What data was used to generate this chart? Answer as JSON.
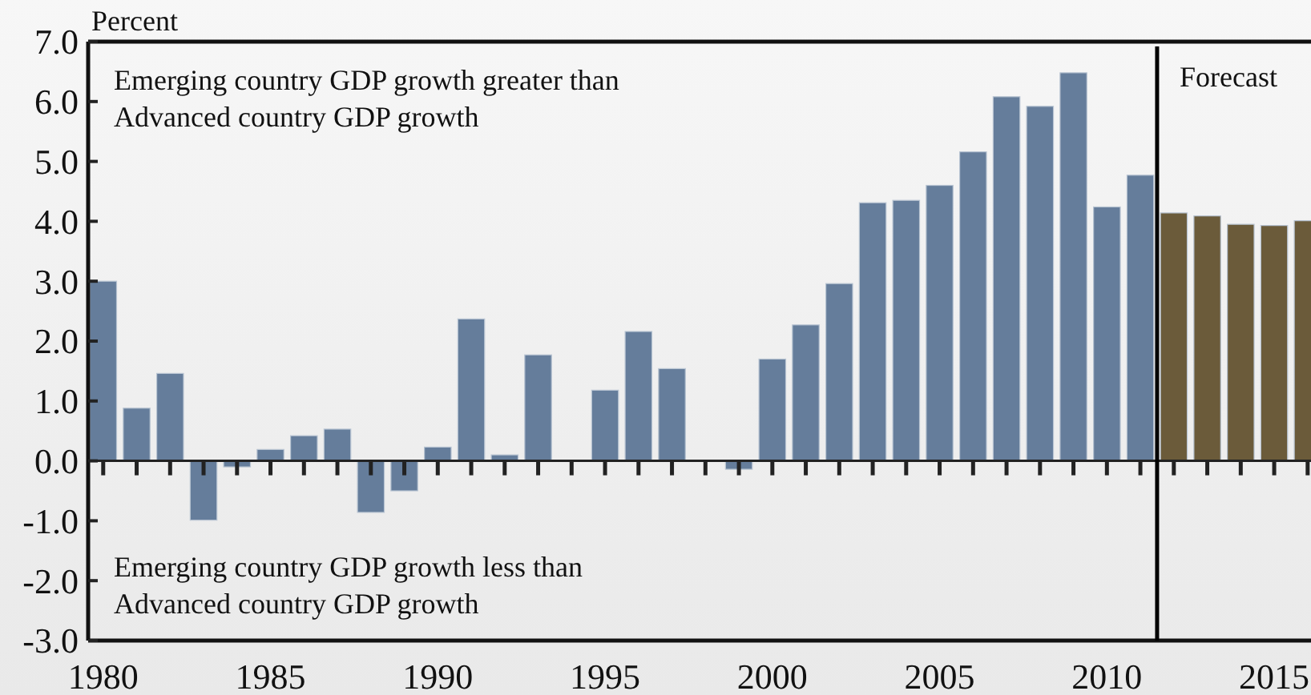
{
  "chart_data": {
    "type": "bar",
    "ylabel": "Percent",
    "x": [
      1980,
      1981,
      1982,
      1983,
      1984,
      1985,
      1986,
      1987,
      1988,
      1989,
      1990,
      1991,
      1992,
      1993,
      1994,
      1995,
      1996,
      1997,
      1998,
      1999,
      2000,
      2001,
      2002,
      2003,
      2004,
      2005,
      2006,
      2007,
      2008,
      2009,
      2010,
      2011,
      2012,
      2013,
      2014,
      2015,
      2016
    ],
    "series": [
      {
        "color": "#657d9b",
        "values": [
          3.0,
          0.88,
          1.46,
          -0.99,
          -0.1,
          0.19,
          0.42,
          0.53,
          -0.86,
          -0.5,
          0.23,
          2.37,
          0.1,
          1.77,
          0,
          1.18,
          2.16,
          1.54,
          0,
          -0.14,
          1.7,
          2.27,
          2.96,
          4.31,
          4.35,
          4.6,
          5.16,
          6.08,
          5.92,
          6.48,
          4.24,
          4.77,
          null,
          null,
          null,
          null,
          null
        ]
      },
      {
        "color": "#6b5b3a",
        "values": [
          null,
          null,
          null,
          null,
          null,
          null,
          null,
          null,
          null,
          null,
          null,
          null,
          null,
          null,
          null,
          null,
          null,
          null,
          null,
          null,
          null,
          null,
          null,
          null,
          null,
          null,
          null,
          null,
          null,
          null,
          null,
          null,
          4.14,
          4.09,
          3.95,
          3.93,
          4.01
        ]
      }
    ],
    "xlim": [
      1979.55,
      2016.1
    ],
    "xticks": [
      1980,
      {
        "value": 1981,
        "label": null
      },
      {
        "value": 1982,
        "label": null
      },
      {
        "value": 1983,
        "label": null
      },
      {
        "value": 1984,
        "label": null
      },
      1985,
      {
        "value": 1986,
        "label": null
      },
      {
        "value": 1987,
        "label": null
      },
      {
        "value": 1988,
        "label": null
      },
      {
        "value": 1989,
        "label": null
      },
      1990,
      {
        "value": 1991,
        "label": null
      },
      {
        "value": 1992,
        "label": null
      },
      {
        "value": 1993,
        "label": null
      },
      {
        "value": 1994,
        "label": null
      },
      1995,
      {
        "value": 1996,
        "label": null
      },
      {
        "value": 1997,
        "label": null
      },
      {
        "value": 1998,
        "label": null
      },
      {
        "value": 1999,
        "label": null
      },
      2000,
      {
        "value": 2001,
        "label": null
      },
      {
        "value": 2002,
        "label": null
      },
      {
        "value": 2003,
        "label": null
      },
      {
        "value": 2004,
        "label": null
      },
      2005,
      {
        "value": 2006,
        "label": null
      },
      {
        "value": 2007,
        "label": null
      },
      {
        "value": 2008,
        "label": null
      },
      {
        "value": 2009,
        "label": null
      },
      2010,
      {
        "value": 2011,
        "label": null
      },
      {
        "value": 2012,
        "label": null
      },
      {
        "value": 2013,
        "label": null
      },
      {
        "value": 2014,
        "label": null
      },
      2015,
      {
        "value": 2016,
        "label": null
      }
    ],
    "ylim": [
      -3,
      7
    ],
    "yticks": [
      {
        "value": -3,
        "label": "-3.0"
      },
      {
        "value": -2,
        "label": "-2.0"
      },
      {
        "value": -1,
        "label": "-1.0"
      },
      {
        "value": 0,
        "label": "0.0"
      },
      {
        "value": 1,
        "label": "1.0"
      },
      {
        "value": 2,
        "label": "2.0"
      },
      {
        "value": 3,
        "label": "3.0"
      },
      {
        "value": 4,
        "label": "4.0"
      },
      {
        "value": 5,
        "label": "5.0"
      },
      {
        "value": 6,
        "label": "6.0"
      },
      {
        "value": 7,
        "label": "7.0"
      }
    ],
    "ref_lines": [
      {
        "axis": "x",
        "value": 2011.5,
        "label": "Forecast",
        "color": "#000000"
      }
    ],
    "annotations": [
      "Emerging country GDP growth greater than\nAdvanced country GDP growth",
      "Emerging country GDP growth less than\nAdvanced country GDP growth"
    ],
    "tick_labels": true
  }
}
